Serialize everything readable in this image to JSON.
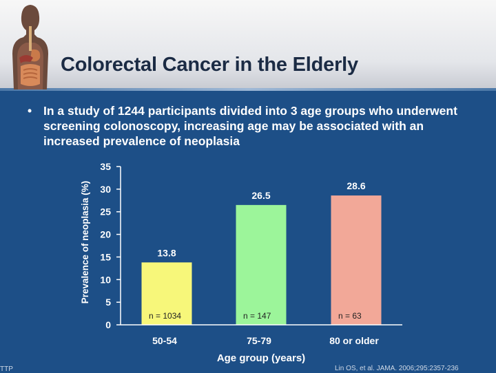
{
  "slide": {
    "title": "Colorectal Cancer in the Elderly",
    "bullet": "In a study of 1244 participants divided into 3 age groups who underwent screening colonoscopy, increasing age may be associated with an increased prevalence of neoplasia",
    "footer_left": "TTP",
    "footer_right": "Lin OS, et al. JAMA. 2006;295:2357-236"
  },
  "icons": {
    "header_art": "anatomy-digestive-icon"
  },
  "colors": {
    "background": "#1d4f87",
    "axis": "#ffffff",
    "bar_colors": [
      "#f7f77a",
      "#9cf59a",
      "#f2a898"
    ]
  },
  "chart_data": {
    "type": "bar",
    "title": "",
    "xlabel": "Age group (years)",
    "ylabel": "Prevalence of neoplasia (%)",
    "ylim": [
      0,
      35
    ],
    "yticks": [
      0,
      5,
      10,
      15,
      20,
      25,
      30,
      35
    ],
    "categories": [
      "50-54",
      "75-79",
      "80 or older"
    ],
    "values": [
      13.8,
      26.5,
      28.6
    ],
    "value_labels": [
      "13.8",
      "26.5",
      "28.6"
    ],
    "n_labels": [
      "n = 1034",
      "n = 147",
      "n = 63"
    ],
    "grid": false,
    "legend": "none"
  }
}
